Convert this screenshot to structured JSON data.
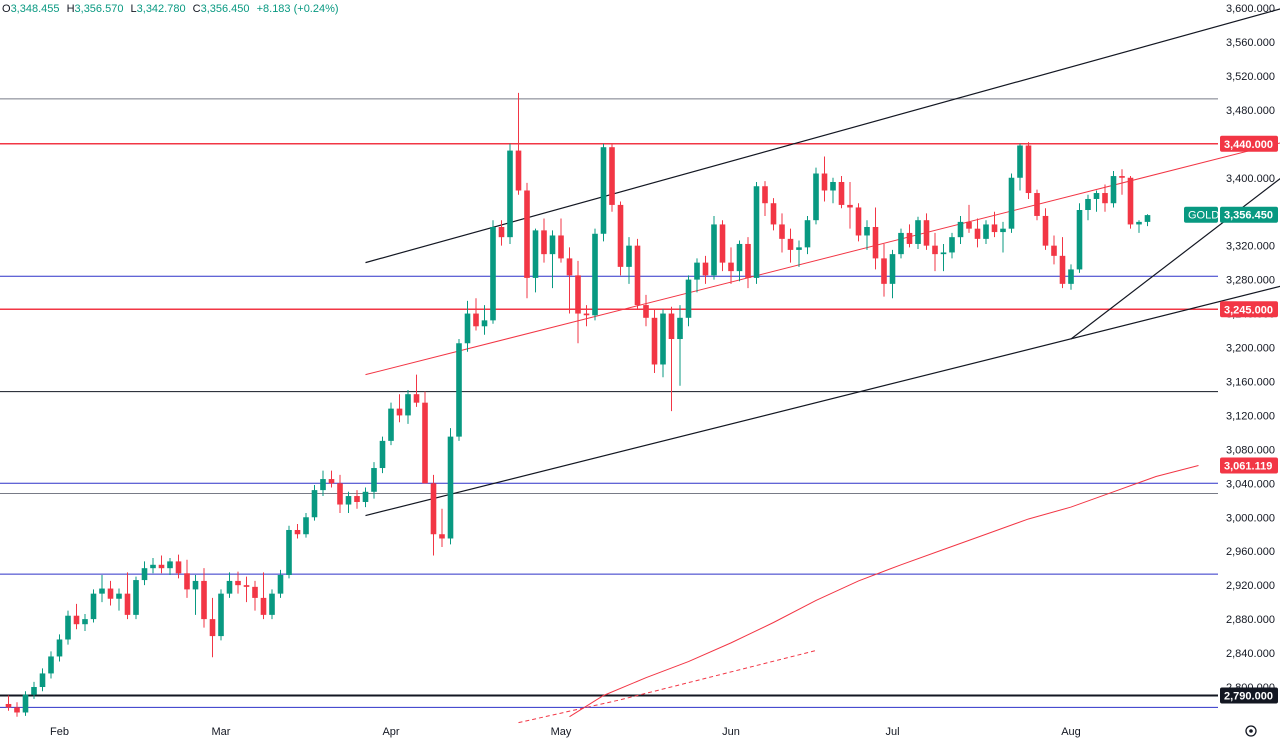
{
  "header": {
    "o_label": "O",
    "o_value": "3,348.455",
    "h_label": "H",
    "h_value": "3,356.570",
    "l_label": "L",
    "l_value": "3,342.780",
    "c_label": "C",
    "c_value": "3,356.450",
    "change": "+8.183 (+0.24%)"
  },
  "colors": {
    "up": "#089981",
    "down": "#f23645",
    "hline_blue": "#2e32c8",
    "red_line": "#f23645"
  },
  "chart_data": {
    "type": "candlestick",
    "symbol": "GOLD",
    "last_price": 3356.45,
    "last_price_label": "3,356.450",
    "ylim": [
      2760,
      3610
    ],
    "y_ticks": [
      2800,
      2840,
      2880,
      2920,
      2960,
      3000,
      3040,
      3080,
      3120,
      3160,
      3200,
      3240,
      3280,
      3320,
      3360,
      3400,
      3440,
      3480,
      3520,
      3560,
      3600
    ],
    "y_tick_labels": [
      "2,800.000",
      "2,840.000",
      "2,880.000",
      "2,920.000",
      "2,960.000",
      "3,000.000",
      "3,040.000",
      "3,080.000",
      "3,120.000",
      "3,160.000",
      "3,200.000",
      "3,240.000",
      "3,280.000",
      "3,320.000",
      "3,360.000",
      "3,400.000",
      "3,440.000",
      "3,480.000",
      "3,520.000",
      "3,560.000",
      "3,600.000"
    ],
    "x_labels": [
      {
        "label": "Feb",
        "index": 6
      },
      {
        "label": "Mar",
        "index": 25
      },
      {
        "label": "Apr",
        "index": 45
      },
      {
        "label": "May",
        "index": 65
      },
      {
        "label": "Jun",
        "index": 85
      },
      {
        "label": "Jul",
        "index": 104
      },
      {
        "label": "Aug",
        "index": 125
      }
    ],
    "candles": [
      [
        2780,
        2790,
        2772,
        2776
      ],
      [
        2776,
        2782,
        2765,
        2770
      ],
      [
        2770,
        2795,
        2766,
        2791
      ],
      [
        2791,
        2806,
        2786,
        2800
      ],
      [
        2800,
        2822,
        2795,
        2816
      ],
      [
        2816,
        2842,
        2810,
        2836
      ],
      [
        2836,
        2862,
        2830,
        2856
      ],
      [
        2856,
        2890,
        2850,
        2884
      ],
      [
        2884,
        2898,
        2868,
        2874
      ],
      [
        2874,
        2886,
        2866,
        2880
      ],
      [
        2880,
        2915,
        2876,
        2910
      ],
      [
        2910,
        2932,
        2900,
        2916
      ],
      [
        2916,
        2925,
        2896,
        2904
      ],
      [
        2904,
        2916,
        2890,
        2910
      ],
      [
        2910,
        2935,
        2880,
        2885
      ],
      [
        2885,
        2930,
        2880,
        2926
      ],
      [
        2926,
        2948,
        2920,
        2940
      ],
      [
        2940,
        2952,
        2934,
        2944
      ],
      [
        2944,
        2955,
        2934,
        2940
      ],
      [
        2940,
        2952,
        2932,
        2948
      ],
      [
        2948,
        2956,
        2928,
        2934
      ],
      [
        2934,
        2950,
        2905,
        2915
      ],
      [
        2915,
        2932,
        2885,
        2925
      ],
      [
        2925,
        2940,
        2870,
        2880
      ],
      [
        2880,
        2905,
        2835,
        2860
      ],
      [
        2860,
        2915,
        2855,
        2910
      ],
      [
        2910,
        2935,
        2905,
        2925
      ],
      [
        2925,
        2936,
        2910,
        2920
      ],
      [
        2920,
        2930,
        2900,
        2918
      ],
      [
        2918,
        2925,
        2890,
        2905
      ],
      [
        2905,
        2935,
        2880,
        2885
      ],
      [
        2885,
        2915,
        2880,
        2910
      ],
      [
        2910,
        2938,
        2905,
        2932
      ],
      [
        2932,
        2990,
        2928,
        2985
      ],
      [
        2985,
        2992,
        2975,
        2980
      ],
      [
        2980,
        3005,
        2976,
        3000
      ],
      [
        3000,
        3038,
        2996,
        3032
      ],
      [
        3032,
        3055,
        3025,
        3045
      ],
      [
        3045,
        3055,
        3035,
        3040
      ],
      [
        3040,
        3050,
        3005,
        3015
      ],
      [
        3015,
        3030,
        3005,
        3025
      ],
      [
        3025,
        3032,
        3010,
        3018
      ],
      [
        3018,
        3035,
        3012,
        3030
      ],
      [
        3030,
        3065,
        3022,
        3058
      ],
      [
        3058,
        3095,
        3052,
        3090
      ],
      [
        3090,
        3135,
        3085,
        3128
      ],
      [
        3128,
        3145,
        3112,
        3120
      ],
      [
        3120,
        3150,
        3110,
        3145
      ],
      [
        3145,
        3168,
        3130,
        3135
      ],
      [
        3135,
        3148,
        3040,
        3040
      ],
      [
        3040,
        3050,
        2955,
        2980
      ],
      [
        2980,
        3010,
        2965,
        2975
      ],
      [
        2975,
        3105,
        2968,
        3095
      ],
      [
        3095,
        3210,
        3090,
        3205
      ],
      [
        3205,
        3255,
        3195,
        3240
      ],
      [
        3240,
        3258,
        3220,
        3225
      ],
      [
        3225,
        3250,
        3215,
        3232
      ],
      [
        3232,
        3350,
        3228,
        3342
      ],
      [
        3342,
        3350,
        3320,
        3330
      ],
      [
        3330,
        3440,
        3322,
        3432
      ],
      [
        3432,
        3500,
        3380,
        3385
      ],
      [
        3385,
        3394,
        3258,
        3282
      ],
      [
        3282,
        3340,
        3265,
        3338
      ],
      [
        3338,
        3352,
        3300,
        3310
      ],
      [
        3310,
        3338,
        3270,
        3332
      ],
      [
        3332,
        3352,
        3300,
        3305
      ],
      [
        3305,
        3318,
        3240,
        3285
      ],
      [
        3285,
        3302,
        3205,
        3240
      ],
      [
        3240,
        3250,
        3225,
        3238
      ],
      [
        3238,
        3340,
        3232,
        3334
      ],
      [
        3334,
        3440,
        3325,
        3436
      ],
      [
        3436,
        3440,
        3360,
        3368
      ],
      [
        3368,
        3372,
        3285,
        3295
      ],
      [
        3295,
        3330,
        3275,
        3320
      ],
      [
        3320,
        3328,
        3245,
        3250
      ],
      [
        3250,
        3262,
        3225,
        3235
      ],
      [
        3235,
        3245,
        3170,
        3180
      ],
      [
        3180,
        3245,
        3165,
        3240
      ],
      [
        3240,
        3248,
        3125,
        3210
      ],
      [
        3210,
        3250,
        3155,
        3235
      ],
      [
        3235,
        3285,
        3225,
        3280
      ],
      [
        3280,
        3305,
        3265,
        3300
      ],
      [
        3300,
        3308,
        3275,
        3285
      ],
      [
        3285,
        3355,
        3280,
        3345
      ],
      [
        3345,
        3350,
        3290,
        3300
      ],
      [
        3300,
        3318,
        3275,
        3290
      ],
      [
        3290,
        3326,
        3278,
        3322
      ],
      [
        3322,
        3330,
        3270,
        3282
      ],
      [
        3282,
        3395,
        3275,
        3390
      ],
      [
        3390,
        3396,
        3355,
        3370
      ],
      [
        3370,
        3376,
        3338,
        3345
      ],
      [
        3345,
        3358,
        3312,
        3328
      ],
      [
        3328,
        3340,
        3300,
        3315
      ],
      [
        3315,
        3326,
        3295,
        3318
      ],
      [
        3318,
        3355,
        3310,
        3350
      ],
      [
        3350,
        3412,
        3345,
        3405
      ],
      [
        3405,
        3425,
        3372,
        3385
      ],
      [
        3385,
        3400,
        3370,
        3395
      ],
      [
        3395,
        3402,
        3364,
        3368
      ],
      [
        3368,
        3395,
        3340,
        3365
      ],
      [
        3365,
        3370,
        3325,
        3332
      ],
      [
        3332,
        3350,
        3315,
        3342
      ],
      [
        3342,
        3365,
        3292,
        3305
      ],
      [
        3305,
        3322,
        3260,
        3275
      ],
      [
        3275,
        3315,
        3258,
        3310
      ],
      [
        3310,
        3340,
        3305,
        3335
      ],
      [
        3335,
        3345,
        3318,
        3322
      ],
      [
        3322,
        3354,
        3316,
        3350
      ],
      [
        3350,
        3358,
        3315,
        3320
      ],
      [
        3320,
        3335,
        3290,
        3310
      ],
      [
        3310,
        3322,
        3290,
        3312
      ],
      [
        3312,
        3335,
        3305,
        3330
      ],
      [
        3330,
        3355,
        3322,
        3348
      ],
      [
        3348,
        3368,
        3335,
        3340
      ],
      [
        3340,
        3352,
        3318,
        3328
      ],
      [
        3328,
        3350,
        3322,
        3345
      ],
      [
        3345,
        3360,
        3330,
        3336
      ],
      [
        3336,
        3348,
        3312,
        3340
      ],
      [
        3340,
        3405,
        3335,
        3400
      ],
      [
        3400,
        3440,
        3385,
        3438
      ],
      [
        3438,
        3442,
        3375,
        3382
      ],
      [
        3382,
        3386,
        3350,
        3355
      ],
      [
        3355,
        3364,
        3315,
        3320
      ],
      [
        3320,
        3332,
        3298,
        3308
      ],
      [
        3308,
        3330,
        3270,
        3275
      ],
      [
        3275,
        3298,
        3268,
        3292
      ],
      [
        3292,
        3370,
        3288,
        3362
      ],
      [
        3362,
        3380,
        3350,
        3375
      ],
      [
        3375,
        3385,
        3360,
        3382
      ],
      [
        3382,
        3392,
        3360,
        3370
      ],
      [
        3370,
        3408,
        3365,
        3402
      ],
      [
        3402,
        3410,
        3380,
        3400
      ],
      [
        3400,
        3402,
        3340,
        3345
      ],
      [
        3345,
        3350,
        3335,
        3348
      ],
      [
        3348,
        3357,
        3343,
        3356
      ]
    ],
    "horizontal_lines": [
      {
        "value": 3493,
        "color": "#787b86",
        "width": 1
      },
      {
        "value": 3440,
        "color": "#f23645",
        "width": 1.5,
        "label": "3,440.000"
      },
      {
        "value": 3284,
        "color": "#2e32c8",
        "width": 1
      },
      {
        "value": 3245,
        "color": "#f23645",
        "width": 1.5,
        "label": "3,245.000"
      },
      {
        "value": 3148,
        "color": "#131722",
        "width": 1
      },
      {
        "value": 3040,
        "color": "#2e32c8",
        "width": 1
      },
      {
        "value": 3028,
        "color": "#787b86",
        "width": 1
      },
      {
        "value": 2933,
        "color": "#2e32c8",
        "width": 1
      },
      {
        "value": 2790,
        "color": "#131722",
        "width": 2,
        "label": "2,790.000"
      },
      {
        "value": 2776,
        "color": "#2e32c8",
        "width": 1
      }
    ],
    "trend_lines": [
      {
        "from": [
          42,
          3300
        ],
        "to": [
          150,
          3600
        ],
        "color": "#131722",
        "width": 1.2
      },
      {
        "from": [
          42,
          3002
        ],
        "to": [
          150,
          3273
        ],
        "color": "#131722",
        "width": 1.2
      },
      {
        "from": [
          125,
          3210
        ],
        "to": [
          150,
          3402
        ],
        "color": "#131722",
        "width": 1.2
      },
      {
        "from": [
          42,
          3168
        ],
        "to": [
          150,
          3442
        ],
        "color": "#f23645",
        "width": 1
      }
    ],
    "moving_average": {
      "color": "#f23645",
      "label": "3,061.119",
      "points": [
        [
          66,
          2765
        ],
        [
          70,
          2790
        ],
        [
          75,
          2811
        ],
        [
          80,
          2830
        ],
        [
          85,
          2852
        ],
        [
          90,
          2876
        ],
        [
          95,
          2902
        ],
        [
          100,
          2925
        ],
        [
          105,
          2944
        ],
        [
          110,
          2962
        ],
        [
          115,
          2980
        ],
        [
          120,
          2998
        ],
        [
          125,
          3012
        ],
        [
          130,
          3030
        ],
        [
          135,
          3048
        ],
        [
          140,
          3061
        ]
      ]
    },
    "ma_dashed": {
      "color": "#f23645",
      "points": [
        [
          60,
          2758
        ],
        [
          72,
          2785
        ],
        [
          95,
          2843
        ]
      ]
    }
  }
}
